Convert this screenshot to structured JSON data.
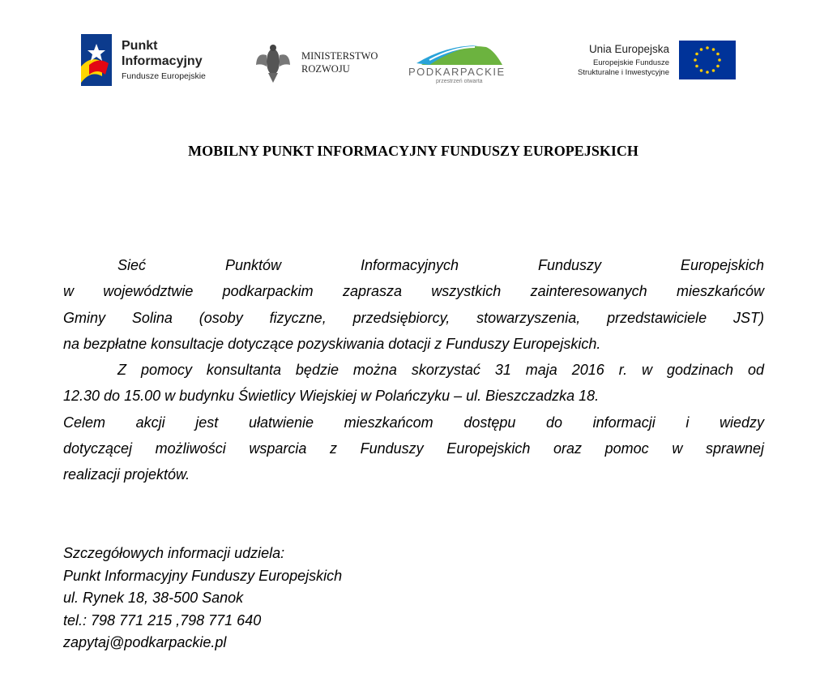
{
  "logos": {
    "punkt": {
      "line1": "Punkt",
      "line2": "Informacyjny",
      "line3": "Fundusze Europejskie"
    },
    "ministerstwo": {
      "line1": "MINISTERSTWO",
      "line2": "ROZWOJU"
    },
    "podkarpackie": {
      "name": "PODKARPACKIE",
      "tagline": "przestrzeń otwarta"
    },
    "ue": {
      "line1": "Unia Europejska",
      "line2": "Europejskie Fundusze",
      "line3": "Strukturalne i Inwestycyjne"
    }
  },
  "title": "MOBILNY PUNKT INFORMACYJNY FUNDUSZY EUROPEJSKICH",
  "body_lines": [
    "Sieć Punktów Informacyjnych Funduszy Europejskich",
    "w województwie podkarpackim zaprasza wszystkich zainteresowanych mieszkańców",
    "Gminy Solina (osoby fizyczne, przedsiębiorcy, stowarzyszenia, przedstawiciele JST)",
    "na bezpłatne konsultacje dotyczące pozyskiwania dotacji z Funduszy Europejskich.",
    "Z pomocy konsultanta będzie można skorzystać 31 maja 2016 r. w godzinach od",
    "12.30 do 15.00 w budynku Świetlicy Wiejskiej w Polańczyku – ul. Bieszczadzka 18.",
    "Celem akcji jest ułatwienie mieszkańcom dostępu do informacji i wiedzy",
    "dotyczącej możliwości wsparcia z Funduszy Europejskich oraz pomoc w sprawnej",
    "realizacji projektów."
  ],
  "contact": [
    "Szczegółowych informacji udziela:",
    "Punkt Informacyjny Funduszy Europejskich",
    "ul. Rynek 18, 38-500 Sanok",
    "tel.: 798 771 215 ,798 771 640",
    "zapytaj@podkarpackie.pl"
  ],
  "colors": {
    "eu_blue": "#003399",
    "eu_star": "#ffcc00",
    "pfe_red": "#e30613",
    "pfe_yellow": "#ffd500",
    "pod_green": "#6cb33f",
    "pod_blue": "#29a3d9"
  }
}
